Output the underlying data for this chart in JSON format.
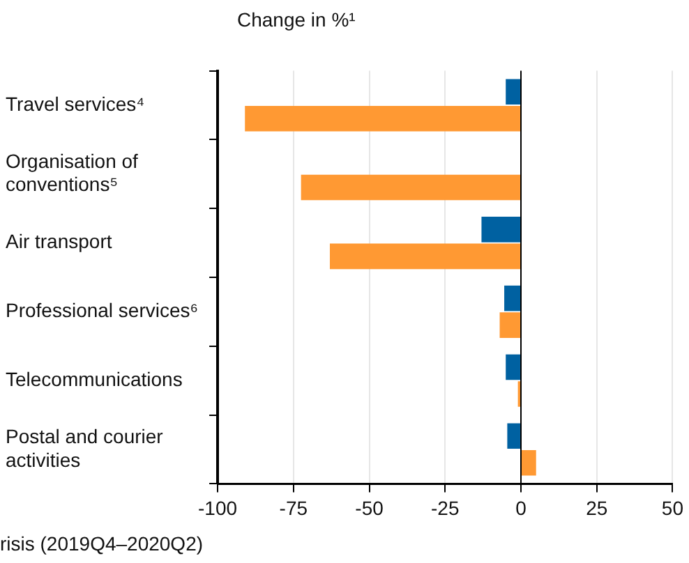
{
  "chart_data": {
    "type": "bar",
    "orientation": "horizontal",
    "title": "Change in %¹",
    "categories": [
      "Travel services⁴",
      "Organisation of conventions⁵",
      "Air transport",
      "Professional services⁶",
      "Telecommunications",
      "Postal and courier activities"
    ],
    "series": [
      {
        "color": "#0061a1",
        "values": [
          -5,
          null,
          -13,
          -5.5,
          -5,
          -4.5
        ]
      },
      {
        "color": "#ff9933",
        "values": [
          -91,
          -72.5,
          -63,
          -7,
          -1,
          5
        ]
      }
    ],
    "xlim": [
      -100,
      50
    ],
    "xticks": [
      -100,
      -75,
      -50,
      -25,
      0,
      25,
      50
    ],
    "grid": "x",
    "annotations": [
      "risis (2019Q4–2020Q2)"
    ]
  }
}
